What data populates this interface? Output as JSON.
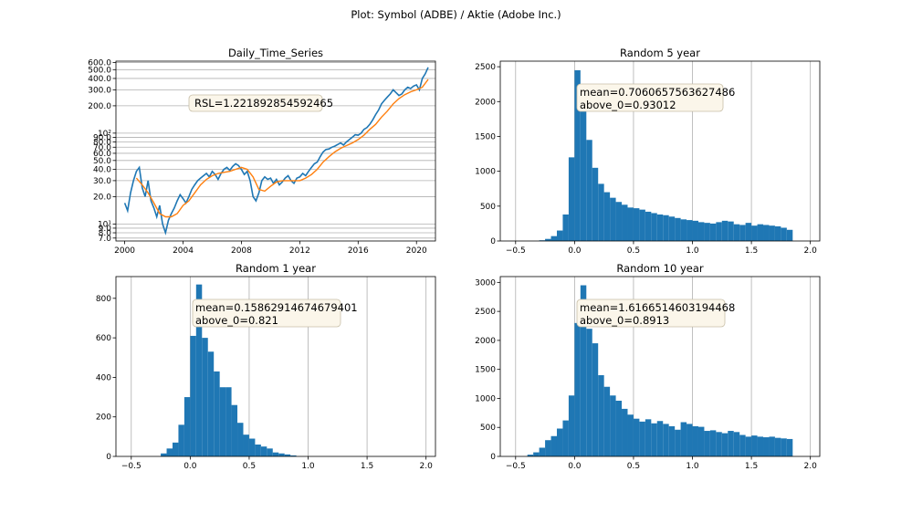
{
  "figure": {
    "suptitle": "Plot: Symbol (ADBE) / Aktie (Adobe Inc.)"
  },
  "colors": {
    "bar": "#1f77b4",
    "price": "#1f77b4",
    "average": "#ff7f0e",
    "grid": "#b0b0b0",
    "annotation_bg": "#fbf6ea",
    "annotation_border": "#c8bfa8"
  },
  "chart_data": [
    {
      "id": "daily",
      "type": "line",
      "title": "Daily_Time_Series",
      "yscale": "log",
      "ylim": [
        6.5,
        620
      ],
      "xlim": [
        1999.4,
        2021.3
      ],
      "xticks": [
        2000,
        2004,
        2008,
        2012,
        2016,
        2020
      ],
      "xtick_labels": [
        "2000",
        "2004",
        "2008",
        "2012",
        "2016",
        "2020"
      ],
      "yticks": [
        7,
        8,
        9,
        10,
        20,
        30,
        40,
        50,
        60,
        70,
        80,
        90,
        100,
        200,
        300,
        400,
        500,
        600
      ],
      "ytick_labels": [
        "7.0",
        "8.0",
        "9.0",
        "10¹",
        "20.0",
        "30.0",
        "40.0",
        "50.0",
        "60.0",
        "70.0",
        "80.0",
        "90.0",
        "10²",
        "200.0",
        "300.0",
        "400.0",
        "500.0",
        "600.0"
      ],
      "grid": "y",
      "annotation": "RSL=1.221892854592465",
      "series": [
        {
          "color": "price",
          "x": [
            2000.0,
            2000.2,
            2000.4,
            2000.6,
            2000.8,
            2001.0,
            2001.2,
            2001.4,
            2001.6,
            2001.8,
            2002.0,
            2002.2,
            2002.4,
            2002.6,
            2002.8,
            2003.0,
            2003.2,
            2003.4,
            2003.6,
            2003.8,
            2004.0,
            2004.2,
            2004.4,
            2004.6,
            2004.8,
            2005.0,
            2005.2,
            2005.4,
            2005.6,
            2005.8,
            2006.0,
            2006.2,
            2006.4,
            2006.6,
            2006.8,
            2007.0,
            2007.2,
            2007.4,
            2007.6,
            2007.8,
            2008.0,
            2008.2,
            2008.4,
            2008.6,
            2008.8,
            2009.0,
            2009.2,
            2009.4,
            2009.6,
            2009.8,
            2010.0,
            2010.2,
            2010.4,
            2010.6,
            2010.8,
            2011.0,
            2011.2,
            2011.4,
            2011.6,
            2011.8,
            2012.0,
            2012.2,
            2012.4,
            2012.6,
            2012.8,
            2013.0,
            2013.2,
            2013.4,
            2013.6,
            2013.8,
            2014.0,
            2014.2,
            2014.4,
            2014.6,
            2014.8,
            2015.0,
            2015.2,
            2015.4,
            2015.6,
            2015.8,
            2016.0,
            2016.2,
            2016.4,
            2016.6,
            2016.8,
            2017.0,
            2017.2,
            2017.4,
            2017.6,
            2017.8,
            2018.0,
            2018.2,
            2018.4,
            2018.6,
            2018.8,
            2019.0,
            2019.2,
            2019.4,
            2019.6,
            2019.8,
            2020.0,
            2020.2,
            2020.4,
            2020.6,
            2020.8
          ],
          "values": [
            17,
            14,
            22,
            30,
            38,
            42,
            25,
            20,
            30,
            18,
            15,
            12,
            16,
            10,
            8,
            11,
            13,
            15,
            18,
            21,
            19,
            17,
            20,
            24,
            27,
            30,
            32,
            34,
            36,
            33,
            38,
            35,
            31,
            36,
            40,
            42,
            39,
            43,
            46,
            44,
            40,
            35,
            38,
            30,
            20,
            18,
            22,
            30,
            33,
            31,
            32,
            28,
            31,
            27,
            29,
            32,
            34,
            30,
            28,
            32,
            33,
            36,
            34,
            38,
            42,
            46,
            48,
            55,
            62,
            66,
            67,
            70,
            72,
            75,
            78,
            74,
            80,
            85,
            90,
            96,
            95,
            100,
            110,
            115,
            125,
            140,
            160,
            180,
            210,
            230,
            250,
            270,
            300,
            280,
            260,
            270,
            300,
            320,
            310,
            330,
            340,
            300,
            400,
            450,
            530
          ]
        },
        {
          "color": "average",
          "x": [
            2000.8,
            2001.2,
            2001.6,
            2002.0,
            2002.4,
            2002.8,
            2003.2,
            2003.6,
            2004.0,
            2004.4,
            2004.8,
            2005.2,
            2005.6,
            2006.0,
            2006.4,
            2006.8,
            2007.2,
            2007.6,
            2008.0,
            2008.4,
            2008.8,
            2009.2,
            2009.6,
            2010.0,
            2010.4,
            2010.8,
            2011.2,
            2011.6,
            2012.0,
            2012.4,
            2012.8,
            2013.2,
            2013.6,
            2014.0,
            2014.4,
            2014.8,
            2015.2,
            2015.6,
            2016.0,
            2016.4,
            2016.8,
            2017.2,
            2017.6,
            2018.0,
            2018.4,
            2018.8,
            2019.2,
            2019.6,
            2020.0,
            2020.4,
            2020.8
          ],
          "values": [
            32,
            27,
            22,
            17,
            13,
            12,
            12,
            13,
            16,
            18,
            22,
            27,
            31,
            34,
            36,
            37,
            38,
            40,
            42,
            40,
            33,
            24,
            23,
            26,
            29,
            30,
            30,
            30,
            30,
            32,
            35,
            40,
            48,
            55,
            62,
            68,
            73,
            78,
            85,
            95,
            110,
            125,
            150,
            175,
            210,
            240,
            265,
            285,
            300,
            320,
            390
          ]
        }
      ]
    },
    {
      "id": "r5",
      "type": "bar",
      "title": "Random 5 year",
      "xlim": [
        -0.63,
        2.08
      ],
      "ylim": [
        0,
        2580
      ],
      "xticks": [
        -0.5,
        0.0,
        0.5,
        1.0,
        1.5,
        2.0
      ],
      "xtick_labels": [
        "−0.5",
        "0.0",
        "0.5",
        "1.0",
        "1.5",
        "2.0"
      ],
      "yticks": [
        0,
        500,
        1000,
        1500,
        2000,
        2500
      ],
      "ytick_labels": [
        "0",
        "500",
        "1000",
        "1500",
        "2000",
        "2500"
      ],
      "grid": "x",
      "annotation": [
        "mean=0.7060657563627486",
        "above_0=0.93012"
      ],
      "bin_start": -0.3,
      "bin_width": 0.05,
      "values": [
        10,
        30,
        70,
        150,
        380,
        1200,
        2450,
        2150,
        1450,
        1050,
        820,
        700,
        620,
        560,
        520,
        480,
        470,
        450,
        420,
        400,
        380,
        370,
        350,
        330,
        310,
        300,
        290,
        270,
        260,
        250,
        270,
        290,
        280,
        240,
        230,
        260,
        220,
        240,
        230,
        220,
        210,
        190,
        160
      ]
    },
    {
      "id": "r1",
      "type": "bar",
      "title": "Random 1 year",
      "xlim": [
        -0.63,
        2.08
      ],
      "ylim": [
        0,
        910
      ],
      "xticks": [
        -0.5,
        0.0,
        0.5,
        1.0,
        1.5,
        2.0
      ],
      "xtick_labels": [
        "−0.5",
        "0.0",
        "0.5",
        "1.0",
        "1.5",
        "2.0"
      ],
      "yticks": [
        0,
        200,
        400,
        600,
        800
      ],
      "ytick_labels": [
        "0",
        "200",
        "400",
        "600",
        "800"
      ],
      "grid": "x",
      "annotation": [
        "mean=0.15862914674679401",
        "above_0=0.821"
      ],
      "bin_start": -0.25,
      "bin_width": 0.05,
      "values": [
        15,
        40,
        70,
        160,
        300,
        610,
        870,
        600,
        530,
        430,
        350,
        350,
        260,
        170,
        110,
        90,
        60,
        50,
        40,
        20,
        15,
        10,
        5
      ]
    },
    {
      "id": "r10",
      "type": "bar",
      "title": "Random 10 year",
      "xlim": [
        -0.63,
        2.08
      ],
      "ylim": [
        0,
        3100
      ],
      "xticks": [
        -0.5,
        0.0,
        0.5,
        1.0,
        1.5,
        2.0
      ],
      "xtick_labels": [
        "−0.5",
        "0.0",
        "0.5",
        "1.0",
        "1.5",
        "2.0"
      ],
      "yticks": [
        0,
        500,
        1000,
        1500,
        2000,
        2500,
        3000
      ],
      "ytick_labels": [
        "0",
        "500",
        "1000",
        "1500",
        "2000",
        "2500",
        "3000"
      ],
      "grid": "x",
      "annotation": [
        "mean=1.6166514603194468",
        "above_0=0.8913"
      ],
      "bin_start": -0.4,
      "bin_width": 0.05,
      "values": [
        30,
        70,
        150,
        280,
        350,
        480,
        620,
        1050,
        2300,
        2950,
        2200,
        1950,
        1400,
        1200,
        1050,
        960,
        820,
        720,
        650,
        600,
        640,
        570,
        610,
        560,
        520,
        460,
        590,
        560,
        520,
        510,
        440,
        450,
        420,
        400,
        440,
        420,
        370,
        340,
        360,
        340,
        330,
        340,
        320,
        310,
        300
      ]
    }
  ]
}
